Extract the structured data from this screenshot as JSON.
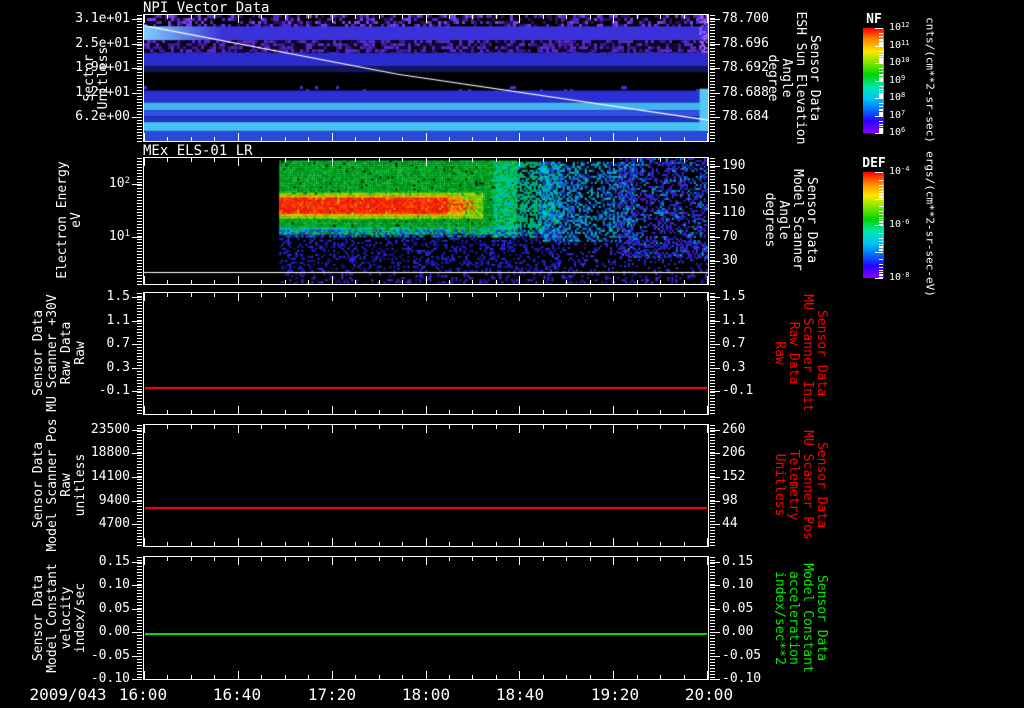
{
  "window": {
    "background": "#000000",
    "foreground": "#ffffff"
  },
  "xaxis": {
    "date": "2009/043",
    "tick_labels": [
      "16:00",
      "16:40",
      "17:20",
      "18:00",
      "18:40",
      "19:20",
      "20:00"
    ],
    "minor_ticks_per_interval": 3,
    "range": "16:00 to 20:00 UT"
  },
  "colorbars": [
    {
      "title": "NF",
      "unit": "cnts/(cm**2-sr-sec)",
      "tick_labels": [
        "10^12",
        "10^11",
        "10^10",
        "10^9",
        "10^8",
        "10^7",
        "10^6"
      ],
      "decades": 7,
      "gradient": [
        "#ff0000",
        "#ff8800",
        "#ffe600",
        "#7ce600",
        "#00d400",
        "#00e6a8",
        "#00c8f0",
        "#0070ff",
        "#2a00ff",
        "#8800ff"
      ]
    },
    {
      "title": "DEF",
      "unit": "ergs/(cm**2-sr-sec-eV)",
      "tick_labels": [
        "10^-4",
        "10^-6",
        "10^-8"
      ],
      "decades": 5,
      "gradient": [
        "#ff0000",
        "#ff8800",
        "#ffe600",
        "#7ce600",
        "#00d400",
        "#00e6a8",
        "#00c8f0",
        "#0070ff",
        "#2a00ff",
        "#8800ff"
      ]
    }
  ],
  "chart_data": [
    {
      "type": "heatmap",
      "title": "NPI Vector Data",
      "ylabel_left": "Sector\nUnitless",
      "ylabel_right": "Sensor Data\nESH Sun Elevation\nAngle\ndegree",
      "yticks_left": {
        "labels": [
          "3.1e+01",
          "2.5e+01",
          "1.9e+01",
          "1.2e+01",
          "6.2e+00"
        ],
        "fractions": [
          0.031,
          0.227,
          0.422,
          0.617,
          0.813
        ]
      },
      "yticks_right": {
        "labels": [
          "78.700",
          "78.696",
          "78.692",
          "78.688",
          "78.684"
        ],
        "fractions": [
          0.031,
          0.227,
          0.422,
          0.617,
          0.813
        ]
      },
      "overlay_line": {
        "label": "ESH Sun Elevation Angle 78.700 -> 78.684",
        "color": "#ffffff",
        "points": [
          [
            0,
            0.085
          ],
          [
            0.45,
            0.47
          ],
          [
            1,
            0.835
          ]
        ]
      },
      "regions": [
        {
          "type": "noise",
          "y0": 0.0,
          "y1": 0.09,
          "colors": [
            "#7a3fe8",
            "#5326c2",
            "#2a0f66"
          ],
          "density": 0.5,
          "cell": 3
        },
        {
          "type": "solid",
          "y0": 0.09,
          "y1": 0.2,
          "color": "#3b31da"
        },
        {
          "type": "hfade",
          "x0": 0,
          "x1": 0.14,
          "y0": 0.09,
          "y1": 0.2,
          "from": "#7fd2fa",
          "to": "rgba(127,210,250,0)"
        },
        {
          "type": "noise",
          "y0": 0.2,
          "y1": 0.3,
          "colors": [
            "#5d2bd0",
            "#3d1a99",
            "#120538"
          ],
          "density": 0.8,
          "cell": 3
        },
        {
          "type": "solid",
          "y0": 0.3,
          "y1": 0.405,
          "color": "#2b2ace"
        },
        {
          "type": "solid",
          "y0": 0.405,
          "y1": 0.455,
          "color": "#15155e"
        },
        {
          "type": "noise",
          "y0": 0.565,
          "y1": 0.6,
          "colors": [
            "#5d2bd0"
          ],
          "density": 0.05,
          "cell": 3
        },
        {
          "type": "solid",
          "y0": 0.6,
          "y1": 0.695,
          "color": "#2a30d8"
        },
        {
          "type": "solid",
          "y0": 0.695,
          "y1": 0.755,
          "color": "#41b4f2"
        },
        {
          "type": "solid",
          "y0": 0.755,
          "y1": 0.805,
          "color": "#3150e4"
        },
        {
          "type": "solid",
          "y0": 0.805,
          "y1": 0.85,
          "color": "#2334c4"
        },
        {
          "type": "solid",
          "y0": 0.85,
          "y1": 0.92,
          "color": "#47c2f5"
        },
        {
          "type": "solid",
          "y0": 0.92,
          "y1": 1.0,
          "color": "#2a49d8"
        },
        {
          "type": "noise",
          "x0": 0.985,
          "x1": 1.0,
          "y0": 0.0,
          "y1": 0.3,
          "colors": [
            "#9a55ff",
            "#b070ff"
          ],
          "density": 0.6,
          "cell": 2
        },
        {
          "type": "solid",
          "x0": 0.985,
          "x1": 1.0,
          "y0": 0.585,
          "y1": 0.92,
          "color": "#54c8f8"
        }
      ]
    },
    {
      "type": "heatmap",
      "title": "MEx ELS-01 LR",
      "ylabel_left": "Electron Energy\neV",
      "ylabel_right": "Sensor Data\nModel Scanner\nAngle\ndegrees",
      "yticks_left": {
        "labels": [
          "10^2",
          "10^1"
        ],
        "fractions": [
          0.203,
          0.625
        ]
      },
      "yticks_right": {
        "labels": [
          "190",
          "150",
          "110",
          "70",
          "30"
        ],
        "fractions": [
          0.0625,
          0.258,
          0.4375,
          0.625,
          0.82
        ]
      },
      "subaxis_line_fraction": 0.905,
      "data_start_fraction": 0.24,
      "regions": [
        {
          "type": "noise",
          "x0": 0.24,
          "x1": 0.66,
          "y0": 0.02,
          "y1": 0.6,
          "colors": [
            "#00c02a",
            "#00d830",
            "#00a822",
            "#22e040"
          ],
          "density": 0.97,
          "cell": 2
        },
        {
          "type": "noise",
          "x0": 0.24,
          "x1": 0.66,
          "y0": 0.55,
          "y1": 0.62,
          "colors": [
            "#00c8b0",
            "#00b0d0"
          ],
          "density": 0.5,
          "cell": 2
        },
        {
          "type": "noise",
          "x0": 0.24,
          "x1": 0.6,
          "y0": 0.275,
          "y1": 0.475,
          "colors": [
            "#aadd00",
            "#cce800",
            "#88cc00"
          ],
          "density": 0.9,
          "cell": 2
        },
        {
          "type": "noise",
          "x0": 0.24,
          "x1": 0.565,
          "y0": 0.3,
          "y1": 0.455,
          "colors": [
            "#ff9900",
            "#ffb800",
            "#ff7700"
          ],
          "density": 0.85,
          "cell": 2
        },
        {
          "type": "noise",
          "x0": 0.24,
          "x1": 0.537,
          "y0": 0.315,
          "y1": 0.44,
          "colors": [
            "#ee1000",
            "#dd0000",
            "#ff3300"
          ],
          "density": 0.93,
          "cell": 2
        },
        {
          "type": "noise",
          "x0": 0.537,
          "x1": 0.585,
          "y0": 0.33,
          "y1": 0.42,
          "colors": [
            "#ee1100",
            "#ff5500"
          ],
          "density": 0.45,
          "cell": 2
        },
        {
          "type": "noise",
          "x0": 0.62,
          "x1": 0.74,
          "y0": 0.03,
          "y1": 0.62,
          "colors": [
            "#00d860",
            "#00ccaa",
            "#00bbcc"
          ],
          "density": 0.6,
          "cell": 2
        },
        {
          "type": "noise",
          "x0": 0.7,
          "x1": 0.87,
          "y0": 0.03,
          "y1": 0.66,
          "colors": [
            "#00aadd",
            "#2266ee",
            "#1133cc",
            "#00ccee"
          ],
          "density": 0.5,
          "cell": 2
        },
        {
          "type": "noise",
          "x0": 0.84,
          "x1": 1.0,
          "y0": 0.0,
          "y1": 0.78,
          "colors": [
            "#2233dd",
            "#1a2ab8",
            "#00a0e0",
            "#3322cc",
            "#5522dd"
          ],
          "density": 0.45,
          "cell": 2
        },
        {
          "type": "noise",
          "x0": 0.24,
          "x1": 0.74,
          "y0": 0.57,
          "y1": 0.9,
          "colors": [
            "#2222dd",
            "#3333ee",
            "#181899"
          ],
          "density": 0.3,
          "cell": 2
        },
        {
          "type": "noise",
          "x0": 0.72,
          "x1": 1.0,
          "y0": 0.66,
          "y1": 0.9,
          "colors": [
            "#2020cc",
            "#3333dd"
          ],
          "density": 0.2,
          "cell": 2
        },
        {
          "type": "noise",
          "x0": 0.24,
          "x1": 1.0,
          "y0": 0.915,
          "y1": 1.0,
          "colors": [
            "#2222dd",
            "#5533ee"
          ],
          "density": 0.2,
          "cell": 2
        }
      ]
    },
    {
      "type": "line",
      "ylabel_left": "Sensor Data\nMU Scanner +30V\nRaw Data\nRaw",
      "ylabel_right": "Sensor Data\nMU Scanner Init\nRaw Data\nRaw",
      "right_label_color": "#ff0000",
      "yticks_left": {
        "labels": [
          "1.5",
          "1.1",
          "0.7",
          "0.3",
          "-0.1"
        ],
        "fractions": [
          0.033,
          0.228,
          0.423,
          0.618,
          0.813
        ]
      },
      "yticks_right": {
        "labels": [
          "1.5",
          "1.1",
          "0.7",
          "0.3",
          "-0.1"
        ],
        "fractions": [
          0.033,
          0.228,
          0.423,
          0.618,
          0.813
        ]
      },
      "series": [
        {
          "name": "MU Scanner +30V Raw Data",
          "color": "#ff0000",
          "constant_value": -0.02,
          "y_fraction": 0.777
        }
      ]
    },
    {
      "type": "line",
      "ylabel_left": "Sensor Data\nModel Scanner Pos\nRaw\nunitless",
      "ylabel_right": "Sensor Data\nMU Scanner Pos\nTelemetry\nUnitless",
      "right_label_color": "#ff0000",
      "yticks_left": {
        "labels": [
          "23500",
          "18800",
          "14100",
          "9400",
          "4700"
        ],
        "fractions": [
          0.04,
          0.235,
          0.43,
          0.625,
          0.82
        ]
      },
      "yticks_right": {
        "labels": [
          "260",
          "206",
          "152",
          "98",
          "44"
        ],
        "fractions": [
          0.04,
          0.235,
          0.43,
          0.625,
          0.82
        ]
      },
      "series": [
        {
          "name": "Model Scanner Pos Raw",
          "color": "#ff0000",
          "constant_value": 8000,
          "y_fraction": 0.678
        }
      ]
    },
    {
      "type": "line",
      "ylabel_left": "Sensor Data\nModel Constant\nvelocity\nindex/sec",
      "ylabel_right": "Sensor Data\nModel Constant\nacceleration\nindex/sec**2",
      "right_label_color": "#00ee00",
      "yticks_left": {
        "labels": [
          "0.15",
          "0.10",
          "0.05",
          "0.00",
          "-0.05",
          "-0.10"
        ],
        "fractions": [
          0.04,
          0.232,
          0.424,
          0.616,
          0.808,
          1.0
        ]
      },
      "yticks_right": {
        "labels": [
          "0.15",
          "0.10",
          "0.05",
          "0.00",
          "-0.05",
          "-0.10"
        ],
        "fractions": [
          0.04,
          0.232,
          0.424,
          0.616,
          0.808,
          1.0
        ]
      },
      "series": [
        {
          "name": "Model Constant velocity",
          "color": "#00dd00",
          "constant_value": 0.0,
          "y_fraction": 0.623
        }
      ]
    }
  ]
}
